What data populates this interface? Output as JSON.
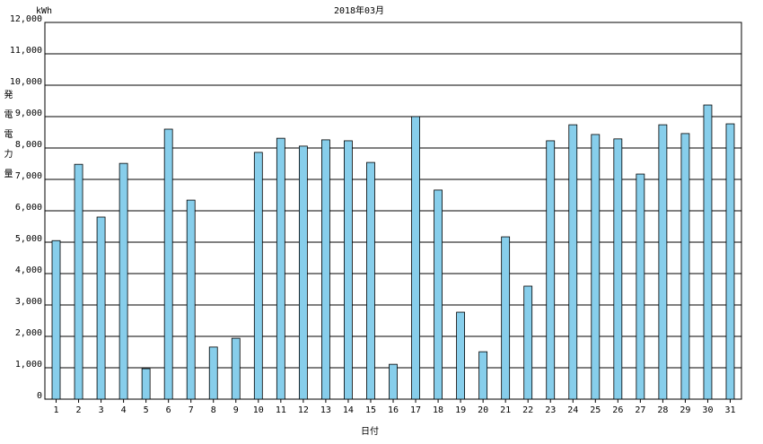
{
  "chart_data": {
    "type": "bar",
    "title": "2018年03月",
    "unit": "kWh",
    "x_label": "日付",
    "y_label": "発電電力量",
    "categories": [
      "1",
      "2",
      "3",
      "4",
      "5",
      "6",
      "7",
      "8",
      "9",
      "10",
      "11",
      "12",
      "13",
      "14",
      "15",
      "16",
      "17",
      "18",
      "19",
      "20",
      "21",
      "22",
      "23",
      "24",
      "25",
      "26",
      "27",
      "28",
      "29",
      "30",
      "31"
    ],
    "values": [
      5050,
      7480,
      5800,
      7510,
      970,
      8600,
      6340,
      1660,
      1940,
      7860,
      8310,
      8060,
      8260,
      8230,
      7540,
      1110,
      9000,
      6660,
      2770,
      1510,
      5170,
      3600,
      8230,
      8740,
      8430,
      8290,
      7170,
      8740,
      8460,
      9370,
      8770
    ],
    "color": "#87ceeb",
    "ylim": [
      0,
      12000
    ],
    "yticks": [
      0,
      {
        "value": 1000,
        "label": "1,000"
      },
      {
        "value": 2000,
        "label": "2,000"
      },
      {
        "value": 3000,
        "label": "3,000"
      },
      {
        "value": 4000,
        "label": "4,000"
      },
      {
        "value": 5000,
        "label": "5,000"
      },
      {
        "value": 6000,
        "label": "6,000"
      },
      {
        "value": 7000,
        "label": "7,000"
      },
      {
        "value": 8000,
        "label": "8,000"
      },
      {
        "value": 9000,
        "label": "9,000"
      },
      {
        "value": 10000,
        "label": "10,000"
      },
      {
        "value": 11000,
        "label": "11,000"
      },
      {
        "value": 12000,
        "label": "12,000"
      }
    ],
    "grid": true
  }
}
